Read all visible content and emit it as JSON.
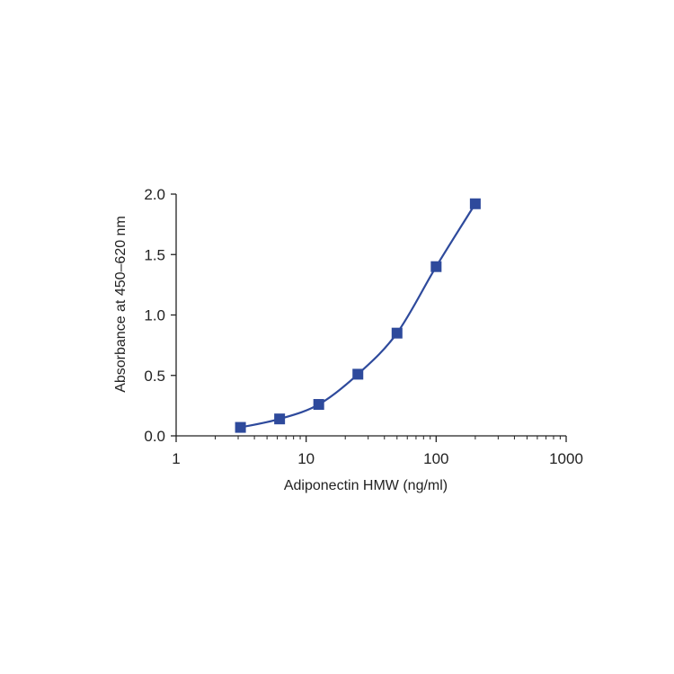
{
  "chart_data": {
    "type": "scatter",
    "xlabel": "Adiponectin HMW (ng/ml)",
    "ylabel": "Absorbance at 450–620 nm",
    "x_scale": "log",
    "xlim": [
      1,
      1000
    ],
    "ylim": [
      0,
      2.0
    ],
    "x_ticks": [
      1,
      10,
      100,
      1000
    ],
    "x_tick_labels": [
      "1",
      "10",
      "100",
      "1000"
    ],
    "y_ticks": [
      0,
      0.5,
      1.0,
      1.5,
      2.0
    ],
    "y_tick_labels": [
      "0.0",
      "0.5",
      "1.0",
      "1.5",
      "2.0"
    ],
    "grid": false,
    "series": [
      {
        "color": "#2e4a9c",
        "marker": "square",
        "fit_line": true,
        "x": [
          3.125,
          6.25,
          12.5,
          25,
          50,
          100,
          200
        ],
        "y": [
          0.07,
          0.14,
          0.26,
          0.51,
          0.85,
          1.4,
          1.92
        ]
      }
    ]
  }
}
